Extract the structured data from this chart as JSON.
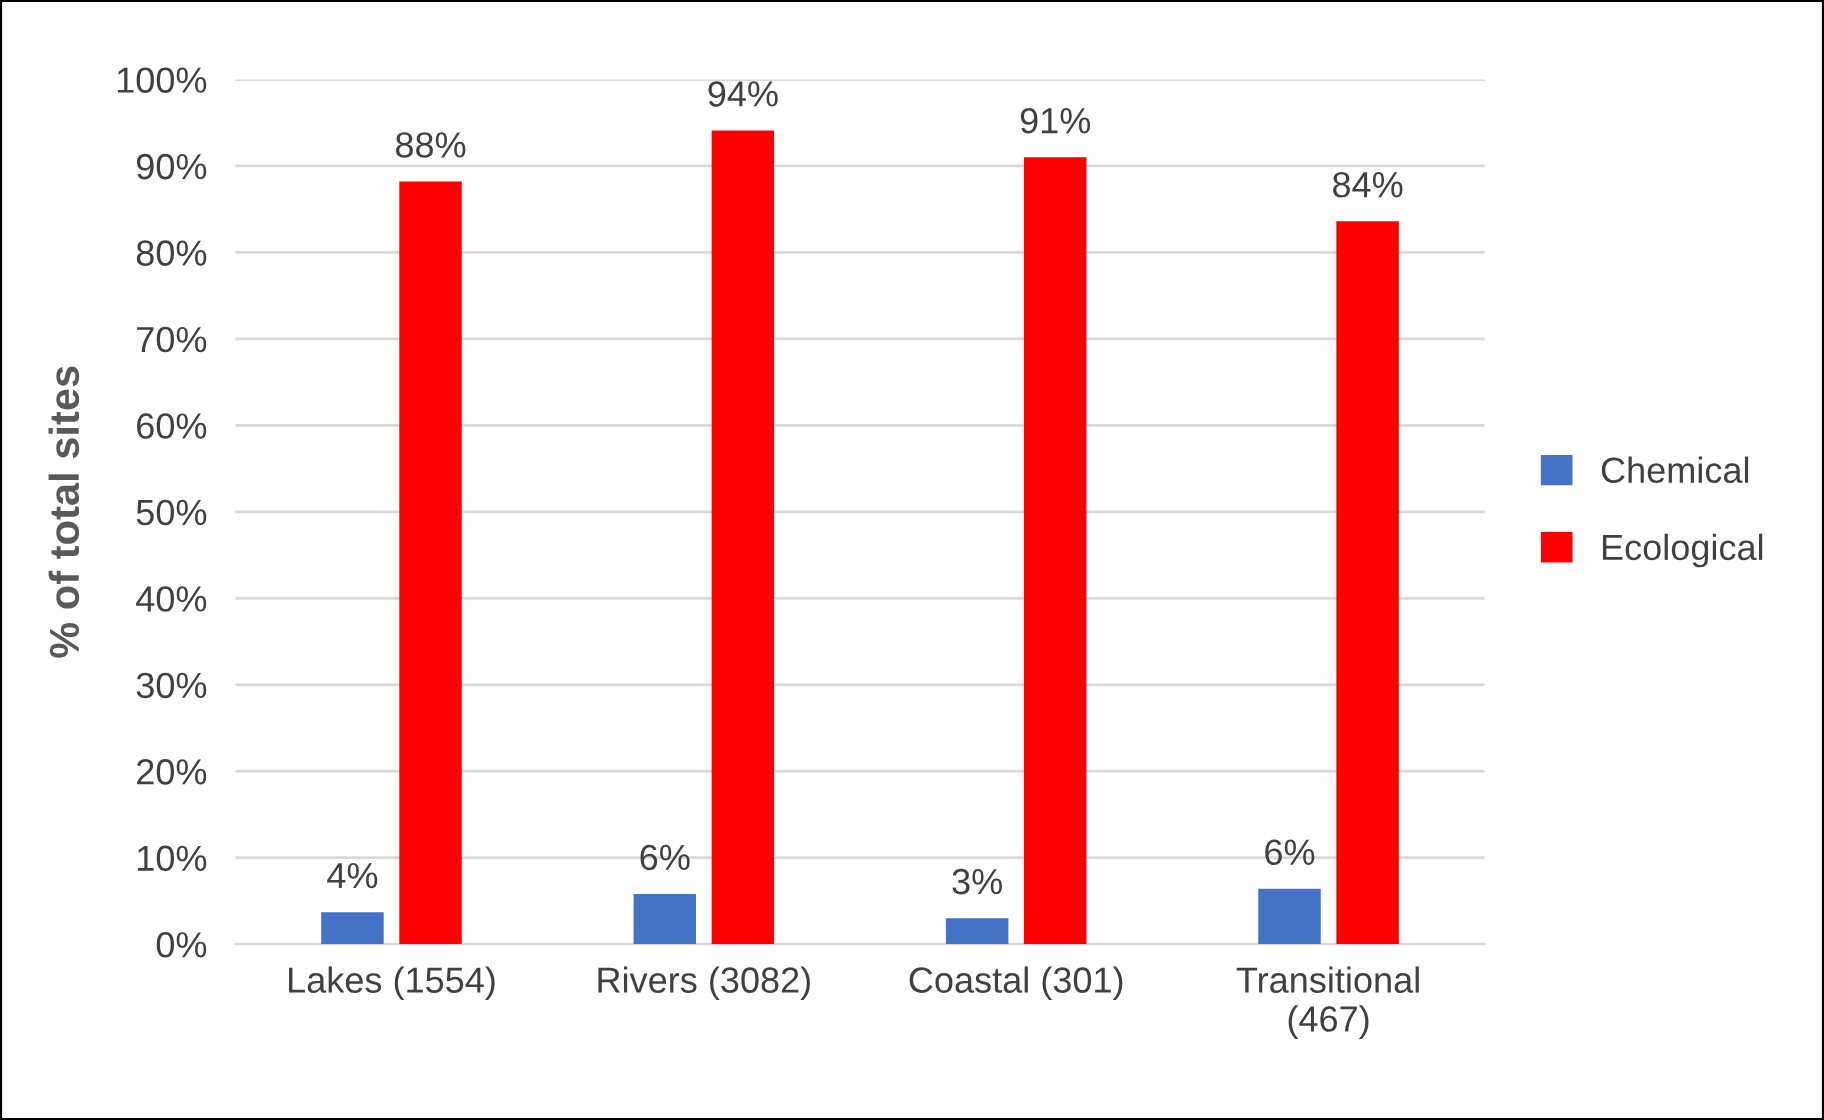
{
  "chart_data": {
    "type": "bar",
    "ylabel": "% of total sites",
    "categories": [
      "Lakes (1554)",
      "Rivers (3082)",
      "Coastal (301)",
      "Transitional (467)"
    ],
    "series": [
      {
        "name": "Chemical",
        "color": "#4472c4",
        "values": [
          3.7,
          5.8,
          3.0,
          6.4
        ],
        "value_labels": [
          "4%",
          "6%",
          "3%",
          "6%"
        ]
      },
      {
        "name": "Ecological",
        "color": "#ff0000",
        "values": [
          88.2,
          94.1,
          91.0,
          83.6
        ],
        "value_labels": [
          "88%",
          "94%",
          "91%",
          "84%"
        ]
      }
    ],
    "ylim": [
      0,
      100
    ],
    "yticks": [
      {
        "value": 0,
        "label": "0%"
      },
      {
        "value": 10,
        "label": "10%"
      },
      {
        "value": 20,
        "label": "20%"
      },
      {
        "value": 30,
        "label": "30%"
      },
      {
        "value": 40,
        "label": "40%"
      },
      {
        "value": 50,
        "label": "50%"
      },
      {
        "value": 60,
        "label": "60%"
      },
      {
        "value": 70,
        "label": "70%"
      },
      {
        "value": 80,
        "label": "80%"
      },
      {
        "value": 90,
        "label": "90%"
      },
      {
        "value": 100,
        "label": "100%"
      }
    ],
    "grid": "y",
    "legend": "right"
  }
}
